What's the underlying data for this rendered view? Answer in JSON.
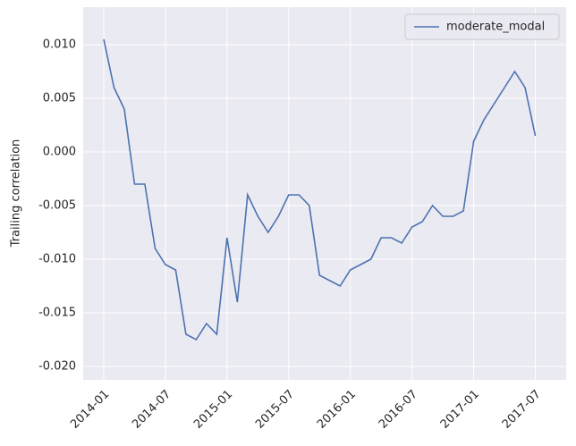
{
  "chart_data": {
    "type": "line",
    "ylabel": "Trailing correlation",
    "x": [
      "2014-01",
      "2014-02",
      "2014-03",
      "2014-04",
      "2014-05",
      "2014-06",
      "2014-07",
      "2014-08",
      "2014-09",
      "2014-10",
      "2014-11",
      "2014-12",
      "2015-01",
      "2015-02",
      "2015-03",
      "2015-04",
      "2015-05",
      "2015-06",
      "2015-07",
      "2015-08",
      "2015-09",
      "2015-10",
      "2015-11",
      "2015-12",
      "2016-01",
      "2016-02",
      "2016-03",
      "2016-04",
      "2016-05",
      "2016-06",
      "2016-07",
      "2016-08",
      "2016-09",
      "2016-10",
      "2016-11",
      "2016-12",
      "2017-01",
      "2017-02",
      "2017-03",
      "2017-04",
      "2017-05",
      "2017-06",
      "2017-07"
    ],
    "series": [
      {
        "name": "moderate_modal",
        "color": "#4c72b0",
        "values": [
          0.0105,
          0.006,
          0.004,
          -0.003,
          -0.003,
          -0.009,
          -0.0105,
          -0.011,
          -0.017,
          -0.0175,
          -0.016,
          -0.017,
          -0.008,
          -0.014,
          -0.004,
          -0.006,
          -0.0075,
          -0.006,
          -0.004,
          -0.004,
          -0.005,
          -0.0115,
          -0.012,
          -0.0125,
          -0.011,
          -0.0105,
          -0.01,
          -0.008,
          -0.008,
          -0.0085,
          -0.007,
          -0.0065,
          -0.005,
          -0.006,
          -0.006,
          -0.0055,
          0.001,
          0.003,
          0.0045,
          0.006,
          0.0075,
          0.006,
          0.0015
        ]
      }
    ],
    "xlim": [
      "2013-11",
      "2017-10"
    ],
    "xticks": [
      "2014-01",
      "2014-07",
      "2015-01",
      "2015-07",
      "2016-01",
      "2016-07",
      "2017-01",
      "2017-07"
    ],
    "ylim": [
      -0.02125,
      0.0135
    ],
    "yticks": [
      {
        "value": 0.01,
        "label": "0.010"
      },
      0.005,
      {
        "value": 0,
        "label": "0.000"
      },
      -0.005,
      {
        "value": -0.01,
        "label": "-0.010"
      },
      -0.015,
      {
        "value": -0.02,
        "label": "-0.020"
      }
    ],
    "grid": true,
    "legend": "upper right"
  }
}
